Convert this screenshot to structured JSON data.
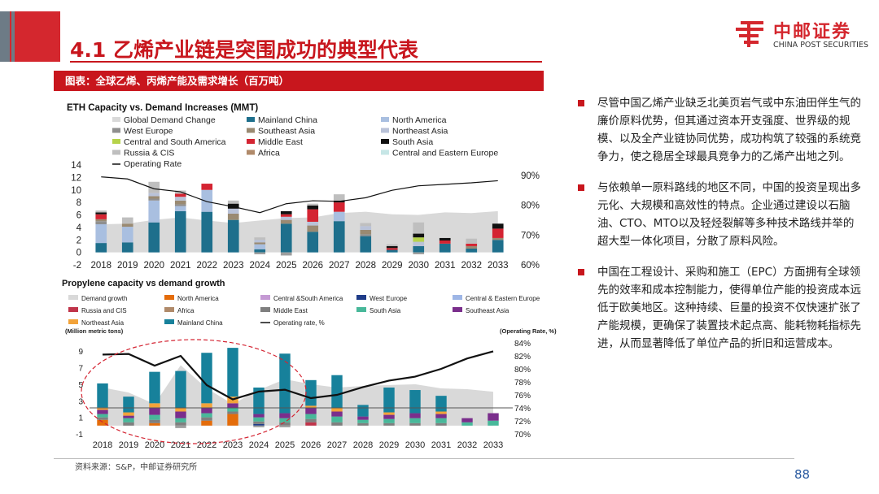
{
  "header": {
    "title": "4.1 乙烯产业链是突围成功的典型代表",
    "logo_cn": "中邮证券",
    "logo_en": "CHINA POST SECURITIES"
  },
  "caption": "图表：全球乙烯、丙烯产能及需求增长（百万吨）",
  "colors": {
    "brand_red": "#c8161d",
    "accent_blue": "#2a5aa0"
  },
  "chart_data": [
    {
      "type": "bar",
      "title": "ETH Capacity vs. Demand Increases (MMT)",
      "categories": [
        "2018",
        "2019",
        "2020",
        "2021",
        "2022",
        "2023",
        "2024",
        "2025",
        "2026",
        "2027",
        "2028",
        "2029",
        "2030",
        "2031",
        "2032",
        "2033"
      ],
      "ylim": [
        -2,
        14
      ],
      "yticks": [
        "-2",
        "0",
        "2",
        "4",
        "6",
        "8",
        "10",
        "12",
        "14"
      ],
      "y2lim": [
        60,
        93.5
      ],
      "y2ticks": [
        "60%",
        "70%",
        "80%",
        "90%"
      ],
      "legend": [
        "Global Demand Change",
        "Mainland China",
        "North America",
        "West Europe",
        "Southeast Asia",
        "Northeast Asia",
        "Central and South America",
        "Middle East",
        "South Asia",
        "Russia & CIS",
        "Africa",
        "Central and Eastern Europe",
        "Operating Rate"
      ],
      "demand_area": [
        4.5,
        4.6,
        5.2,
        5.6,
        5.1,
        4.7,
        5.1,
        5.5,
        5.6,
        6.3,
        6.5,
        6.1,
        6.0,
        6.4,
        6.3,
        6.6
      ],
      "series": [
        {
          "name": "Mainland China",
          "color": "#1e6f8c",
          "values": [
            1.5,
            1.6,
            4.8,
            6.6,
            6.5,
            5.2,
            0.5,
            4.6,
            3.3,
            5.0,
            2.6,
            0.4,
            1.0,
            1.4,
            0.6,
            2.0
          ]
        },
        {
          "name": "North America",
          "color": "#a9bfe0",
          "values": [
            3.0,
            2.5,
            3.5,
            0.8,
            3.5,
            0.0,
            0.8,
            0.0,
            0.0,
            1.5,
            0.0,
            0.0,
            0.0,
            0.0,
            0.0,
            0.0
          ]
        },
        {
          "name": "West Europe",
          "color": "#8f8f8f",
          "values": [
            0.5,
            0.0,
            0.3,
            0.3,
            0.0,
            0.0,
            0.0,
            0.0,
            0.0,
            0.0,
            0.3,
            0.0,
            0.0,
            0.0,
            0.0,
            0.0
          ]
        },
        {
          "name": "Southeast Asia",
          "color": "#9a8a72",
          "values": [
            0.3,
            0.5,
            0.4,
            0.6,
            0.0,
            1.0,
            0.3,
            0.6,
            1.0,
            0.0,
            0.7,
            0.0,
            0.0,
            0.0,
            0.4,
            0.3
          ]
        },
        {
          "name": "Northeast Asia",
          "color": "#b9c2d8",
          "values": [
            0.0,
            0.0,
            0.5,
            0.6,
            0.0,
            0.8,
            0.4,
            0.5,
            0.6,
            0.0,
            0.6,
            0.0,
            0.7,
            0.0,
            0.0,
            0.0
          ]
        },
        {
          "name": "Central and South America",
          "color": "#b6d34a",
          "values": [
            0.0,
            0.0,
            0.0,
            0.0,
            0.0,
            0.0,
            0.0,
            0.0,
            0.0,
            0.0,
            0.0,
            0.0,
            0.7,
            0.0,
            0.0,
            0.0
          ]
        },
        {
          "name": "Middle East",
          "color": "#d42432",
          "values": [
            0.8,
            0.0,
            0.0,
            0.5,
            1.0,
            0.0,
            0.0,
            0.4,
            2.0,
            1.5,
            0.0,
            0.3,
            0.0,
            0.5,
            0.4,
            1.5
          ]
        },
        {
          "name": "South Asia",
          "color": "#111111",
          "values": [
            0.3,
            0.0,
            0.0,
            0.0,
            0.0,
            0.8,
            0.0,
            0.5,
            0.6,
            0.3,
            0.0,
            0.3,
            0.6,
            0.4,
            0.0,
            0.8
          ]
        },
        {
          "name": "Russia & CIS",
          "color": "#bfbfbf",
          "values": [
            0.3,
            1.0,
            1.8,
            0.5,
            0.0,
            0.5,
            0.4,
            0.0,
            0.3,
            1.0,
            0.5,
            0.3,
            1.8,
            0.0,
            0.8,
            0.0
          ]
        },
        {
          "name": "Africa",
          "color": "#b08a6a",
          "values": [
            0.0,
            0.0,
            0.0,
            0.0,
            0.0,
            0.0,
            0.0,
            0.0,
            0.0,
            0.0,
            0.0,
            0.0,
            0.0,
            0.0,
            0.0,
            0.0
          ]
        },
        {
          "name": "Central and Eastern Europe",
          "color": "#c6e6e6",
          "values": [
            0.0,
            0.0,
            0.0,
            0.0,
            0.0,
            0.0,
            0.0,
            0.0,
            0.0,
            0.0,
            0.0,
            0.0,
            0.0,
            0.0,
            0.0,
            0.0
          ]
        }
      ],
      "negative": [
        0.0,
        0.0,
        0.0,
        0.0,
        0.0,
        0.0,
        -0.3,
        -0.5,
        0.0,
        0.0,
        0.0,
        0.0,
        -0.3,
        0.0,
        0.0,
        0.0
      ],
      "operating_rate": [
        89.5,
        88.8,
        85.5,
        84.5,
        81.2,
        79.5,
        77.5,
        80.5,
        81.5,
        81.3,
        82.5,
        85.0,
        86.5,
        87.0,
        87.5,
        88.2
      ]
    },
    {
      "type": "bar",
      "title": "Propylene capacity vs demand growth",
      "ylabel": "(Million metric tons)",
      "y2label": "(Operating Rate, %)",
      "categories": [
        "2018",
        "2019",
        "2020",
        "2021",
        "2022",
        "2023",
        "2024",
        "2025",
        "2026",
        "2027",
        "2028",
        "2029",
        "2030",
        "2031",
        "2032",
        "2033"
      ],
      "ylim": [
        -1,
        10
      ],
      "yticks": [
        "-1",
        "1",
        "3",
        "5",
        "7",
        "9"
      ],
      "y2lim": [
        70,
        84
      ],
      "y2ticks": [
        "70%",
        "72%",
        "74%",
        "76%",
        "78%",
        "80%",
        "82%",
        "84%"
      ],
      "legend": [
        "Demand growth",
        "North America",
        "Central &South America",
        "West Europe",
        "Central & Eastern Europe",
        "Russia and CIS",
        "Africa",
        "Middle East",
        "South Asia",
        "Southeast Asia",
        "Northeast Asia",
        "Mainland China",
        "Operating rate, %"
      ],
      "demand_area": [
        4.6,
        4.0,
        2.6,
        7.3,
        4.5,
        2.6,
        4.3,
        5.6,
        5.0,
        4.6,
        4.8,
        4.9,
        5.0,
        4.5,
        4.4,
        4.1
      ],
      "series": [
        {
          "name": "North America",
          "color": "#e46c0a",
          "values": [
            0.7,
            0.0,
            0.3,
            0.0,
            0.6,
            1.4,
            0.0,
            0.0,
            0.0,
            0.0,
            0.0,
            0.0,
            0.0,
            0.0,
            0.0,
            0.0
          ]
        },
        {
          "name": "West Europe",
          "color": "#1f3c88",
          "values": [
            0.0,
            0.0,
            0.0,
            0.0,
            0.0,
            0.0,
            0.2,
            0.0,
            0.0,
            0.0,
            0.0,
            0.0,
            0.0,
            0.0,
            0.0,
            0.0
          ]
        },
        {
          "name": "Central & Eastern Europe",
          "color": "#9eb6e6",
          "values": [
            0.0,
            0.0,
            0.0,
            0.0,
            0.0,
            0.0,
            0.0,
            0.0,
            0.0,
            0.0,
            0.0,
            0.0,
            0.0,
            0.0,
            0.0,
            0.0
          ]
        },
        {
          "name": "Russia and CIS",
          "color": "#c0344a",
          "values": [
            0.0,
            0.0,
            0.0,
            0.0,
            0.0,
            0.0,
            0.0,
            0.0,
            0.4,
            0.0,
            0.0,
            0.0,
            0.0,
            0.0,
            0.0,
            0.0
          ]
        },
        {
          "name": "Middle East",
          "color": "#7f7f7f",
          "values": [
            0.3,
            0.4,
            0.4,
            0.4,
            0.4,
            0.3,
            0.3,
            0.4,
            0.4,
            0.4,
            0.3,
            0.3,
            0.3,
            0.3,
            0.0,
            0.0
          ]
        },
        {
          "name": "South Asia",
          "color": "#48b89a",
          "values": [
            0.4,
            0.5,
            0.6,
            0.5,
            0.5,
            0.4,
            0.5,
            0.5,
            0.6,
            0.7,
            0.4,
            0.5,
            0.6,
            0.6,
            0.4,
            0.6
          ]
        },
        {
          "name": "Southeast Asia",
          "color": "#7a2e8c",
          "values": [
            0.5,
            0.3,
            0.9,
            0.8,
            0.7,
            0.6,
            0.4,
            0.6,
            0.7,
            0.6,
            0.4,
            0.5,
            0.6,
            0.5,
            0.5,
            0.9
          ]
        },
        {
          "name": "Northeast Asia",
          "color": "#f2a33a",
          "values": [
            0.3,
            0.4,
            0.5,
            0.4,
            0.5,
            0.8,
            0.0,
            0.0,
            0.3,
            0.4,
            0.0,
            0.3,
            0.0,
            0.3,
            0.0,
            0.0
          ]
        },
        {
          "name": "Mainland China",
          "color": "#17819b",
          "values": [
            2.9,
            1.9,
            3.8,
            4.5,
            6.1,
            5.9,
            3.2,
            7.2,
            3.1,
            4.0,
            1.4,
            3.0,
            2.8,
            1.9,
            0.0,
            0.0
          ]
        }
      ],
      "negative": [
        0.0,
        0.0,
        0.0,
        -0.3,
        0.0,
        0.0,
        -0.2,
        -0.2,
        0.0,
        0.0,
        0.0,
        0.0,
        0.0,
        0.0,
        0.0,
        0.0
      ],
      "operating_rate": [
        82.2,
        82.3,
        80.5,
        82.0,
        77.5,
        75.3,
        76.5,
        76.8,
        75.5,
        76.0,
        77.2,
        78.2,
        78.8,
        80.0,
        81.6,
        82.7
      ],
      "threshold_rate": 74.0,
      "highlight": "dashed-ellipse 2018-2025"
    }
  ],
  "bullets": [
    "尽管中国乙烯产业缺乏北美页岩气或中东油田伴生气的廉价原料优势，但其通过资本开支强度、世界级的规模、以及全产业链协同优势，成功构筑了较强的系统竞争力，使之稳居全球最具竞争力的乙烯产出地之列。",
    "与依赖单一原料路线的地区不同，中国的投资呈现出多元化、大规模和高效性的特点。企业通过建设以石脑油、CTO、MTO以及轻烃裂解等多种技术路线并举的超大型一体化项目，分散了原料风险。",
    "中国在工程设计、采购和施工（EPC）方面拥有全球领先的效率和成本控制能力，使得单位产能的投资成本远低于欧美地区。这种持续、巨量的投资不仅快速扩张了产能规模，更确保了装置技术起点高、能耗物耗指标先进，从而显著降低了单位产品的折旧和运营成本。"
  ],
  "footer": {
    "source": "资料来源：S&P，中邮证券研究所",
    "page": "88"
  }
}
